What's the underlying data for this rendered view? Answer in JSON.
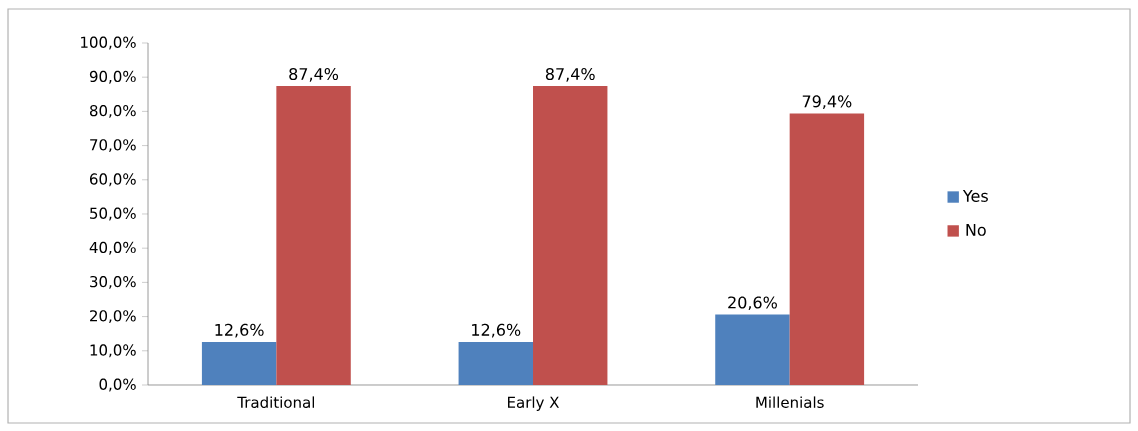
{
  "chart_data": {
    "type": "bar",
    "categories": [
      "Traditional",
      "Early X",
      "Millenials"
    ],
    "series": [
      {
        "name": "Yes",
        "color": "#4f81bd",
        "values": [
          12.6,
          12.6,
          20.6
        ],
        "value_labels": [
          "12,6%",
          "12,6%",
          "20,6%"
        ]
      },
      {
        "name": "No",
        "color": "#c0504d",
        "values": [
          87.4,
          87.4,
          79.4
        ],
        "value_labels": [
          "87,4%",
          "87,4%",
          "79,4%"
        ]
      }
    ],
    "ylim": [
      0,
      100
    ],
    "yticks": [
      {
        "value": 0,
        "label": "0,0%"
      },
      {
        "value": 10,
        "label": "10,0%"
      },
      {
        "value": 20,
        "label": "20,0%"
      },
      {
        "value": 30,
        "label": "30,0%"
      },
      {
        "value": 40,
        "label": "40,0%"
      },
      {
        "value": 50,
        "label": "50,0%"
      },
      {
        "value": 60,
        "label": "60,0%"
      },
      {
        "value": 70,
        "label": "70,0%"
      },
      {
        "value": 80,
        "label": "80,0%"
      },
      {
        "value": 90,
        "label": "90,0%"
      },
      {
        "value": 100,
        "label": "100,0%"
      }
    ],
    "legend": "right"
  }
}
